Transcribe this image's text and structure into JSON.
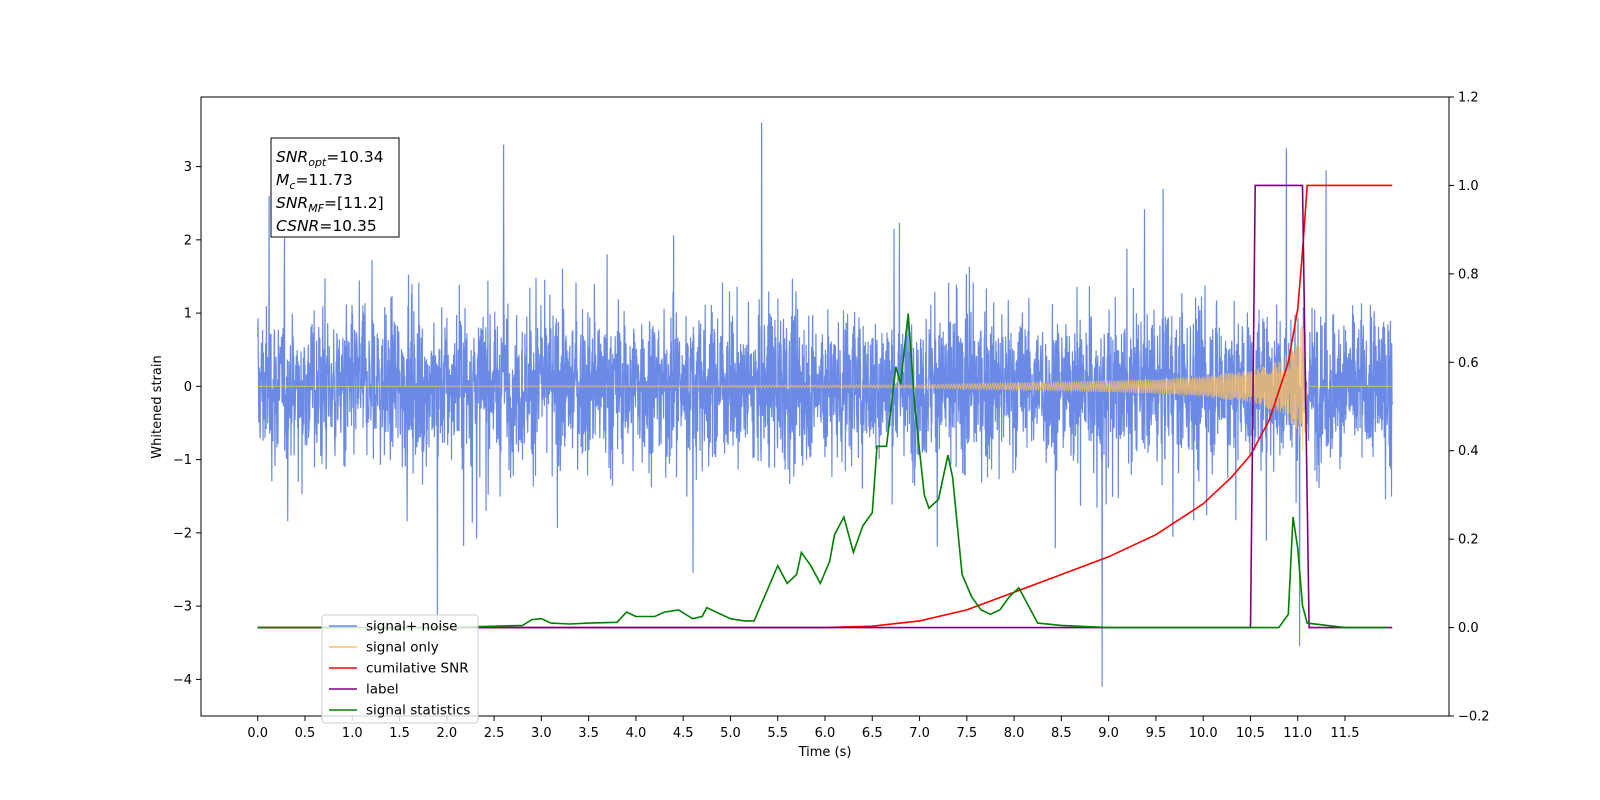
{
  "chart_data": {
    "type": "line",
    "xlabel": "Time (s)",
    "ylabel_left": "Whitened strain",
    "ylabel_right": "",
    "xlim": [
      -0.6,
      12.6
    ],
    "ylim_left": [
      -4.5,
      3.95
    ],
    "ylim_right": [
      -0.2,
      1.2
    ],
    "x_ticks": [
      0.0,
      0.5,
      1.0,
      1.5,
      2.0,
      2.5,
      3.0,
      3.5,
      4.0,
      4.5,
      5.0,
      5.5,
      6.0,
      6.5,
      7.0,
      7.5,
      8.0,
      8.5,
      9.0,
      9.5,
      10.0,
      10.5,
      11.0,
      11.5
    ],
    "x_tick_labels": [
      "0.0",
      "0.5",
      "1.0",
      "1.5",
      "2.0",
      "2.5",
      "3.0",
      "3.5",
      "4.0",
      "4.5",
      "5.0",
      "5.5",
      "6.0",
      "6.5",
      "7.0",
      "7.5",
      "8.0",
      "8.5",
      "9.0",
      "9.5",
      "10.0",
      "10.5",
      "11.0",
      "11.5"
    ],
    "y_left_ticks": [
      3,
      2,
      1,
      0,
      -1,
      -2,
      -3,
      -4
    ],
    "y_left_tick_labels": [
      "3",
      "2",
      "1",
      "0",
      "−1",
      "−2",
      "−3",
      "−4"
    ],
    "y_right_ticks": [
      1.2,
      1.0,
      0.8,
      0.6,
      0.4,
      0.2,
      0.0,
      -0.2
    ],
    "y_right_tick_labels": [
      "1.2",
      "1.0",
      "0.8",
      "0.6",
      "0.4",
      "0.2",
      "0.0",
      "−0.2"
    ],
    "grid": false,
    "legend_position": "lower-left",
    "annotation": {
      "lines": [
        {
          "main": "SNR",
          "sub": "opt",
          "rest": "=10.34"
        },
        {
          "main": "M",
          "sub": "c",
          "rest": "=11.73"
        },
        {
          "main": "SNR",
          "sub": "MF",
          "rest": "=[11.2]"
        },
        {
          "main": "CSNR",
          "sub": "",
          "rest": "=10.35"
        }
      ]
    },
    "series": [
      {
        "name": "signal+ noise",
        "axis": "left",
        "color": "#6a8ae6",
        "x_range": [
          0.0,
          12.0
        ],
        "envelope_typical": 1.3,
        "peaks": [
          {
            "x": 0.12,
            "y": 2.6
          },
          {
            "x": 1.9,
            "y": -3.2
          },
          {
            "x": 2.6,
            "y": 3.3
          },
          {
            "x": 5.33,
            "y": 3.6
          },
          {
            "x": 8.93,
            "y": -4.1
          },
          {
            "x": 10.88,
            "y": 3.25
          },
          {
            "x": 11.02,
            "y": -3.55
          },
          {
            "x": 11.3,
            "y": 2.95
          }
        ]
      },
      {
        "name": "signal only",
        "axis": "left",
        "color": "#ffbf60",
        "x": [
          0.0,
          7.0,
          8.0,
          9.0,
          9.5,
          10.0,
          10.5,
          10.8,
          11.0,
          11.05,
          11.08,
          11.1,
          12.0
        ],
        "amplitude": [
          0.0,
          0.02,
          0.05,
          0.08,
          0.1,
          0.14,
          0.22,
          0.35,
          0.6,
          0.9,
          0.6,
          0.0,
          0.0
        ]
      },
      {
        "name": "cumilative SNR",
        "axis": "right",
        "color": "#ff0000",
        "x": [
          0.0,
          6.0,
          6.5,
          7.0,
          7.5,
          8.0,
          8.5,
          9.0,
          9.5,
          10.0,
          10.3,
          10.5,
          10.7,
          10.9,
          11.0,
          11.05,
          11.1,
          12.0
        ],
        "y": [
          0.0,
          0.0,
          0.003,
          0.015,
          0.04,
          0.08,
          0.12,
          0.16,
          0.21,
          0.28,
          0.34,
          0.39,
          0.47,
          0.6,
          0.72,
          0.85,
          1.0,
          1.0
        ]
      },
      {
        "name": "label",
        "axis": "right",
        "color": "#7b0080",
        "x": [
          0.0,
          10.5,
          10.55,
          11.05,
          11.12,
          12.0
        ],
        "y": [
          0.0,
          0.0,
          1.0,
          1.0,
          0.0,
          0.0
        ]
      },
      {
        "name": "signal statistics",
        "axis": "right",
        "color": "#008000",
        "x": [
          0.0,
          2.0,
          2.5,
          2.8,
          2.9,
          3.0,
          3.1,
          3.3,
          3.5,
          3.8,
          3.9,
          4.0,
          4.2,
          4.3,
          4.45,
          4.6,
          4.7,
          4.75,
          4.85,
          5.0,
          5.15,
          5.25,
          5.3,
          5.4,
          5.5,
          5.6,
          5.7,
          5.75,
          5.85,
          5.95,
          6.05,
          6.1,
          6.2,
          6.3,
          6.4,
          6.5,
          6.55,
          6.65,
          6.75,
          6.8,
          6.88,
          6.95,
          7.05,
          7.1,
          7.2,
          7.3,
          7.35,
          7.45,
          7.55,
          7.65,
          7.75,
          7.85,
          7.95,
          8.05,
          8.25,
          8.5,
          9.0,
          10.0,
          10.8,
          10.9,
          10.95,
          11.0,
          11.05,
          11.1,
          11.5,
          11.95
        ],
        "y": [
          0.0,
          0.0,
          0.003,
          0.005,
          0.018,
          0.02,
          0.01,
          0.008,
          0.01,
          0.012,
          0.035,
          0.025,
          0.025,
          0.035,
          0.04,
          0.02,
          0.025,
          0.045,
          0.035,
          0.02,
          0.015,
          0.015,
          0.04,
          0.09,
          0.14,
          0.1,
          0.12,
          0.17,
          0.14,
          0.1,
          0.15,
          0.21,
          0.25,
          0.17,
          0.23,
          0.26,
          0.41,
          0.41,
          0.59,
          0.55,
          0.71,
          0.5,
          0.3,
          0.27,
          0.29,
          0.39,
          0.34,
          0.12,
          0.07,
          0.04,
          0.03,
          0.04,
          0.07,
          0.09,
          0.01,
          0.005,
          0.0,
          0.0,
          0.0,
          0.03,
          0.25,
          0.18,
          0.05,
          0.01,
          0.0,
          0.0
        ]
      }
    ]
  }
}
